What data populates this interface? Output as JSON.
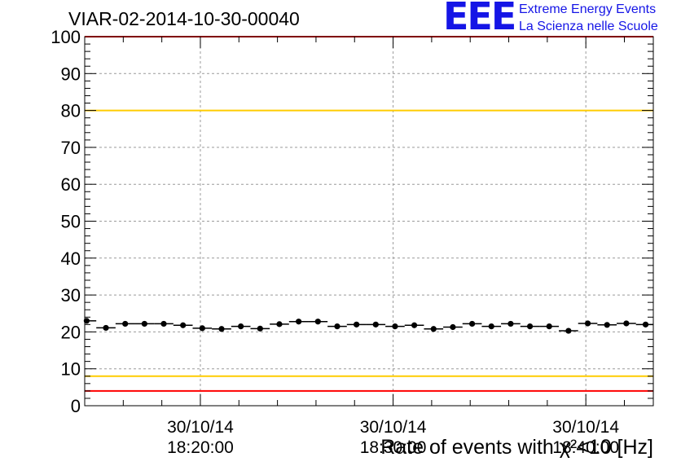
{
  "header": {
    "run_title": "VIAR-02-2014-10-30-00040",
    "logo_letters": "EEE",
    "logo_line1": "Extreme Energy Events",
    "logo_line2": "La Scienza nelle Scuole",
    "logo_color": "#1515e6"
  },
  "chart_data": {
    "type": "scatter",
    "xlabel": "Rate of events with χ²<10 [Hz]",
    "ylabel": "",
    "ylim": [
      0,
      100
    ],
    "y_ticks": [
      0,
      10,
      20,
      30,
      40,
      50,
      60,
      70,
      80,
      90,
      100
    ],
    "x_unit": "minutes after 18:00 on 30/10/14",
    "xlim": [
      14.0,
      43.5
    ],
    "x_ticks": [
      {
        "x": 20,
        "date": "30/10/14",
        "time": "18:20:00"
      },
      {
        "x": 30,
        "date": "30/10/14",
        "time": "18:30:00"
      },
      {
        "x": 40,
        "date": "30/10/14",
        "time": "18:40:00"
      }
    ],
    "grid": true,
    "marker_color": "#000000",
    "points": [
      {
        "x": 14.1,
        "y": 23.0
      },
      {
        "x": 15.1,
        "y": 21.1
      },
      {
        "x": 16.1,
        "y": 22.2
      },
      {
        "x": 17.1,
        "y": 22.2
      },
      {
        "x": 18.1,
        "y": 22.2
      },
      {
        "x": 19.1,
        "y": 21.8
      },
      {
        "x": 20.1,
        "y": 21.0
      },
      {
        "x": 21.1,
        "y": 20.8
      },
      {
        "x": 22.1,
        "y": 21.5
      },
      {
        "x": 23.1,
        "y": 20.9
      },
      {
        "x": 24.1,
        "y": 22.1
      },
      {
        "x": 25.1,
        "y": 22.8
      },
      {
        "x": 26.1,
        "y": 22.8
      },
      {
        "x": 27.1,
        "y": 21.5
      },
      {
        "x": 28.1,
        "y": 22.0
      },
      {
        "x": 29.1,
        "y": 22.0
      },
      {
        "x": 30.1,
        "y": 21.5
      },
      {
        "x": 31.1,
        "y": 21.8
      },
      {
        "x": 32.1,
        "y": 20.8
      },
      {
        "x": 33.1,
        "y": 21.3
      },
      {
        "x": 34.1,
        "y": 22.2
      },
      {
        "x": 35.1,
        "y": 21.5
      },
      {
        "x": 36.1,
        "y": 22.2
      },
      {
        "x": 37.1,
        "y": 21.5
      },
      {
        "x": 38.1,
        "y": 21.5
      },
      {
        "x": 39.1,
        "y": 20.3
      },
      {
        "x": 40.1,
        "y": 22.3
      },
      {
        "x": 41.1,
        "y": 21.9
      },
      {
        "x": 42.1,
        "y": 22.3
      },
      {
        "x": 43.1,
        "y": 22.0
      }
    ],
    "reference_lines": [
      {
        "y": 80,
        "color": "#ffcc00"
      },
      {
        "y": 8,
        "color": "#ffcc00"
      },
      {
        "y": 100,
        "color": "#ff0000"
      },
      {
        "y": 4,
        "color": "#ff0000"
      }
    ]
  }
}
